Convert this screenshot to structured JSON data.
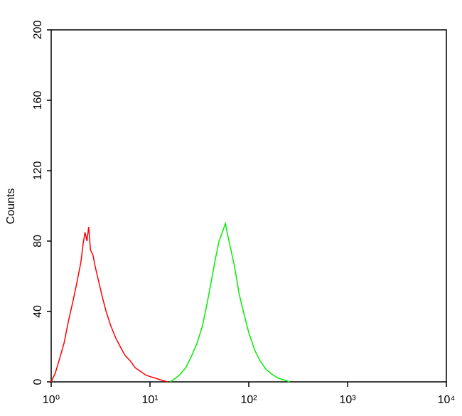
{
  "chart_data": {
    "type": "line",
    "y_label": "Counts",
    "xscale": "log",
    "xlim": [
      1,
      10000
    ],
    "xticks": [
      {
        "value": 1,
        "label": "10⁰"
      },
      {
        "value": 10,
        "label": "10¹"
      },
      {
        "value": 100,
        "label": "10²"
      },
      {
        "value": 1000,
        "label": "10³"
      },
      {
        "value": 10000,
        "label": "10⁴"
      }
    ],
    "ylim": [
      0,
      200
    ],
    "yticks": [
      0,
      40,
      80,
      120,
      160,
      200
    ],
    "series": [
      {
        "color": "#ff0000",
        "x": [
          1.0,
          1.1,
          1.2,
          1.35,
          1.5,
          1.65,
          1.8,
          2.0,
          2.1,
          2.2,
          2.3,
          2.4,
          2.5,
          2.65,
          2.8,
          3.0,
          3.3,
          3.6,
          4.0,
          4.5,
          5.0,
          5.6,
          6.3,
          7.1,
          8,
          9,
          10,
          11.5,
          13,
          15
        ],
        "values": [
          0,
          5,
          12,
          22,
          35,
          45,
          55,
          68,
          78,
          85,
          80,
          88,
          75,
          72,
          65,
          58,
          48,
          40,
          32,
          25,
          20,
          15,
          12,
          8,
          6,
          4,
          3,
          2,
          1,
          0
        ]
      },
      {
        "color": "#00ee00",
        "x": [
          16,
          18,
          20,
          23,
          26,
          30,
          34,
          38,
          42,
          46,
          50,
          54,
          58,
          62,
          66,
          72,
          80,
          90,
          100,
          115,
          130,
          150,
          175,
          200,
          230,
          260
        ],
        "values": [
          0,
          2,
          4,
          8,
          14,
          22,
          32,
          45,
          58,
          70,
          80,
          85,
          90,
          82,
          75,
          65,
          50,
          38,
          28,
          18,
          12,
          7,
          4,
          2,
          1,
          0
        ]
      }
    ]
  }
}
